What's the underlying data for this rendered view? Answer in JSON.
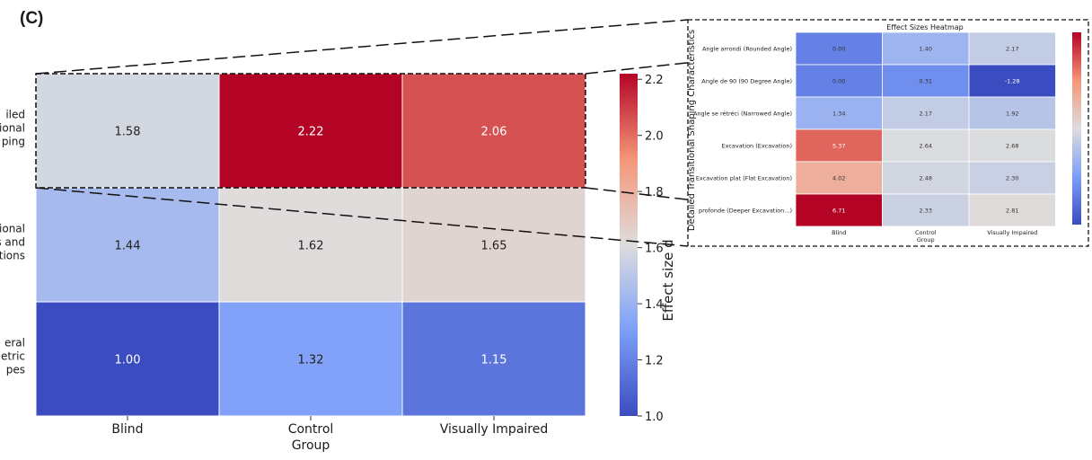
{
  "figure": {
    "panel_label": "(C)"
  },
  "chart_data": [
    {
      "type": "heatmap",
      "title": "",
      "xlabel": "Group",
      "ylabel": "",
      "categories": [
        "Blind",
        "Control",
        "Visually Impaired"
      ],
      "rows": [
        {
          "label": [
            "iled",
            "itional",
            "ping"
          ],
          "values": [
            1.58,
            2.22,
            2.06
          ]
        },
        {
          "label": [
            "sional",
            "s and",
            "ctions"
          ],
          "values": [
            1.44,
            1.62,
            1.65
          ]
        },
        {
          "label": [
            "eral",
            "etric",
            "pes"
          ],
          "values": [
            1.0,
            1.32,
            1.15
          ]
        }
      ],
      "colorbar": {
        "label": "Effect size d",
        "range": [
          1.0,
          2.22
        ],
        "ticks": [
          "1.0",
          "1.2",
          "1.4",
          "1.6",
          "1.8",
          "2.0",
          "2.2"
        ],
        "colormap": "coolwarm"
      },
      "highlight": "top row outlined with dashed box and zoomed to inset"
    },
    {
      "type": "heatmap",
      "title": "Effect Sizes Heatmap",
      "xlabel": "Group",
      "ylabel": "Detailed Transitional Shaping Characteristics",
      "categories": [
        "Blind",
        "Control",
        "Visually Impaired"
      ],
      "rows": [
        {
          "label": "Angle arrondi (Rounded Angle)",
          "values": [
            0.0,
            1.4,
            2.17
          ]
        },
        {
          "label": "Angle de 90 (90 Degree Angle)",
          "values": [
            0.0,
            0.31,
            -1.28
          ]
        },
        {
          "label": "Angle se rétréci (Narrowed Angle)",
          "values": [
            1.34,
            2.17,
            1.92
          ]
        },
        {
          "label": "Excavation (Excavation)",
          "values": [
            5.37,
            2.64,
            2.68
          ]
        },
        {
          "label": "Excavation plat (Flat Excavation)",
          "values": [
            4.02,
            2.48,
            2.3
          ]
        },
        {
          "label": "profonde  (Deeper Excavation...)",
          "values": [
            6.71,
            2.33,
            2.81
          ]
        }
      ],
      "colorbar": {
        "colormap": "coolwarm",
        "range": [
          -1.28,
          6.71
        ]
      }
    }
  ]
}
